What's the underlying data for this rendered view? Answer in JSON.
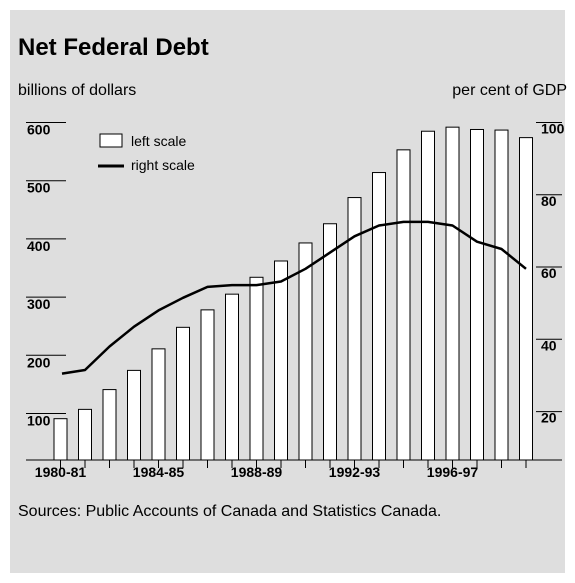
{
  "title": "Net Federal Debt",
  "left_unit": "billions of dollars",
  "right_unit": "per cent of GDP",
  "source": "Sources: Public Accounts of Canada and Statistics Canada.",
  "legend": {
    "bars": "left scale",
    "line": "right scale"
  },
  "colors": {
    "panel": "#dedede",
    "bar_fill": "#ffffff",
    "ink": "#000000"
  },
  "chart_data": {
    "type": "bar",
    "combo": "bar + line (dual axis)",
    "x_tick_labels": [
      "1980-81",
      "1984-85",
      "1988-89",
      "1992-93",
      "1996-97"
    ],
    "categories": [
      "1980-81",
      "1981-82",
      "1982-83",
      "1983-84",
      "1984-85",
      "1985-86",
      "1986-87",
      "1987-88",
      "1988-89",
      "1989-90",
      "1990-91",
      "1991-92",
      "1992-93",
      "1993-94",
      "1994-95",
      "1995-96",
      "1996-97",
      "1997-98",
      "1998-99",
      "1999-00"
    ],
    "series": [
      {
        "name": "left scale",
        "kind": "bar",
        "axis": "left",
        "values": [
          91,
          107,
          141,
          174,
          211,
          248,
          278,
          305,
          334,
          362,
          393,
          426,
          471,
          514,
          553,
          585,
          592,
          588,
          587,
          574
        ]
      },
      {
        "name": "right scale",
        "kind": "line",
        "axis": "right",
        "values": [
          30.5,
          31.5,
          38,
          43.5,
          48,
          51.5,
          54.5,
          55,
          55,
          56,
          59.5,
          64,
          68.5,
          71.5,
          72.5,
          72.5,
          71.5,
          67,
          65,
          59.5
        ]
      }
    ],
    "y_left": {
      "ticks": [
        100,
        200,
        300,
        400,
        500,
        600
      ],
      "range": [
        20,
        600
      ]
    },
    "y_right": {
      "ticks": [
        20,
        40,
        60,
        80,
        100
      ],
      "range": [
        6.6,
        100
      ]
    },
    "grid": false,
    "legend_position": "top-left"
  }
}
